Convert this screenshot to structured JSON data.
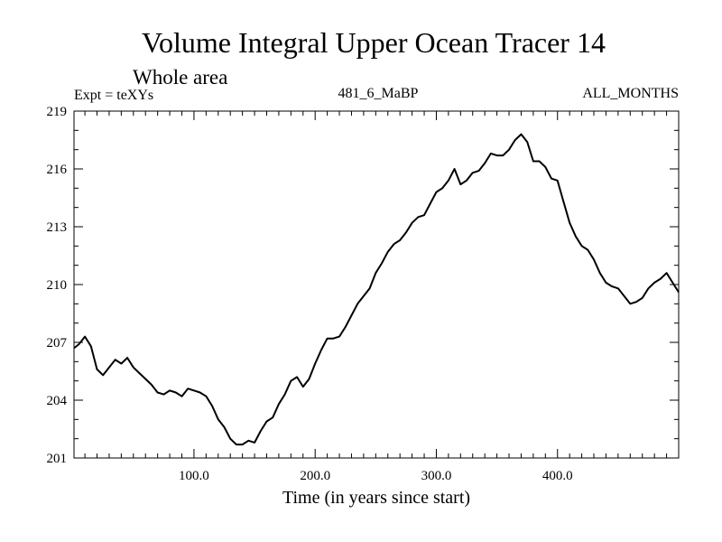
{
  "chart_data": {
    "type": "line",
    "title": "Volume Integral Upper Ocean Tracer 14",
    "subtitle": "Whole area",
    "expt_label": "Expt = teXYs",
    "run_label": "481_6_MaBP",
    "months_label": "ALL_MONTHS",
    "xlabel": "Time (in years since start)",
    "ylabel": "",
    "xlim": [
      1,
      500
    ],
    "ylim": [
      201,
      219
    ],
    "x_ticks": [
      100,
      200,
      300,
      400
    ],
    "x_tick_labels": [
      "100.0",
      "200.0",
      "300.0",
      "400.0"
    ],
    "y_ticks": [
      201,
      204,
      207,
      210,
      213,
      216,
      219
    ],
    "y_tick_labels": [
      "201",
      "204",
      "207",
      "210",
      "213",
      "216",
      "219"
    ],
    "grid": false,
    "line_color": "#000000",
    "series": [
      {
        "x": [
          1,
          5,
          10,
          15,
          20,
          25,
          30,
          35,
          40,
          45,
          50,
          55,
          60,
          65,
          70,
          75,
          80,
          85,
          90,
          95,
          100,
          105,
          110,
          115,
          120,
          125,
          130,
          135,
          140,
          145,
          150,
          155,
          160,
          165,
          170,
          175,
          180,
          185,
          190,
          195,
          200,
          205,
          210,
          215,
          220,
          225,
          230,
          235,
          240,
          245,
          250,
          255,
          260,
          265,
          270,
          275,
          280,
          285,
          290,
          295,
          300,
          305,
          310,
          315,
          320,
          325,
          330,
          335,
          340,
          345,
          350,
          355,
          360,
          365,
          370,
          375,
          380,
          385,
          390,
          395,
          400,
          405,
          410,
          415,
          420,
          425,
          430,
          435,
          440,
          445,
          450,
          455,
          460,
          465,
          470,
          475,
          480,
          485,
          490,
          495,
          500
        ],
        "y": [
          206.7,
          206.9,
          207.3,
          206.8,
          205.6,
          205.3,
          205.7,
          206.1,
          205.9,
          206.2,
          205.7,
          205.4,
          205.1,
          204.8,
          204.4,
          204.3,
          204.5,
          204.4,
          204.2,
          204.6,
          204.5,
          204.4,
          204.2,
          203.7,
          203.0,
          202.6,
          202.0,
          201.7,
          201.7,
          201.9,
          201.8,
          202.4,
          202.9,
          203.1,
          203.8,
          204.3,
          205.0,
          205.2,
          204.7,
          205.1,
          205.9,
          206.6,
          207.2,
          207.2,
          207.3,
          207.8,
          208.4,
          209.0,
          209.4,
          209.8,
          210.6,
          211.1,
          211.7,
          212.1,
          212.3,
          212.7,
          213.2,
          213.5,
          213.6,
          214.2,
          214.8,
          215.0,
          215.4,
          216.0,
          215.2,
          215.4,
          215.8,
          215.9,
          216.3,
          216.8,
          216.7,
          216.7,
          217.0,
          217.5,
          217.8,
          217.4,
          216.4,
          216.4,
          216.1,
          215.5,
          215.4,
          214.3,
          213.2,
          212.5,
          212.0,
          211.8,
          211.3,
          210.6,
          210.1,
          209.9,
          209.8,
          209.4,
          209.0,
          209.1,
          209.3,
          209.8,
          210.1,
          210.3,
          210.6,
          210.1,
          209.6
        ]
      }
    ]
  }
}
